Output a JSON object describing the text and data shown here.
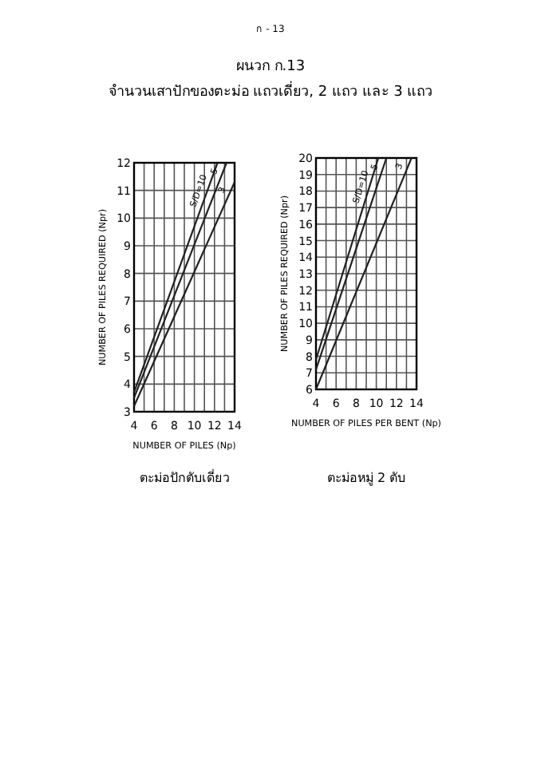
{
  "chart_data": [
    {
      "type": "line",
      "title": "ผนวก ก.13",
      "subtitle": "จำนวนเสาปักของตะม่อ แถวเดี่ยว, 2 แถว และ 3 แถว",
      "annotations": [
        "ก - 13",
        "ตะม่อปักตับเดี่ยว"
      ],
      "xlabel": "NUMBER OF PILES (Np)",
      "ylabel": "NUMBER OF PILES REQUIRED (Npr)",
      "xlim": [
        4,
        14
      ],
      "ylim": [
        3,
        12
      ],
      "xticks": [
        4,
        {
          "value": 5,
          "label": null
        },
        6,
        {
          "value": 7,
          "label": null
        },
        8,
        {
          "value": 9,
          "label": null
        },
        10,
        {
          "value": 11,
          "label": null
        },
        12,
        {
          "value": 13,
          "label": null
        },
        14
      ],
      "yticks": [
        3,
        4,
        5,
        6,
        7,
        8,
        9,
        10,
        11,
        12
      ],
      "grid": true,
      "line_style": "solid",
      "series": [
        {
          "name": "S/D=10",
          "color": "#222222",
          "x": [
            4,
            12.3
          ],
          "values": [
            3.7,
            12
          ]
        },
        {
          "name": "5",
          "color": "#222222",
          "x": [
            4,
            13.2
          ],
          "values": [
            3.5,
            12
          ]
        },
        {
          "name": "3",
          "color": "#222222",
          "x": [
            4,
            14
          ],
          "values": [
            3.2,
            11.3
          ]
        }
      ]
    },
    {
      "type": "line",
      "annotations": [
        "ตะม่อหมู่ 2 ตับ"
      ],
      "xlabel": "NUMBER OF PILES PER BENT (Np)",
      "ylabel": "NUMBER OF PILES REQUIRED (Npr)",
      "xlim": [
        4,
        14
      ],
      "ylim": [
        6,
        20
      ],
      "xticks": [
        4,
        {
          "value": 5,
          "label": null
        },
        6,
        {
          "value": 7,
          "label": null
        },
        8,
        {
          "value": 9,
          "label": null
        },
        10,
        {
          "value": 11,
          "label": null
        },
        12,
        {
          "value": 13,
          "label": null
        },
        14
      ],
      "yticks": [
        6,
        7,
        8,
        9,
        10,
        11,
        12,
        13,
        14,
        15,
        16,
        17,
        18,
        19,
        20
      ],
      "grid": true,
      "line_style": "solid",
      "series": [
        {
          "name": "S/D=10",
          "color": "#222222",
          "x": [
            4,
            10.2
          ],
          "values": [
            7.8,
            20
          ]
        },
        {
          "name": "5",
          "color": "#222222",
          "x": [
            4,
            11
          ],
          "values": [
            7.2,
            20
          ]
        },
        {
          "name": "3",
          "color": "#222222",
          "x": [
            4,
            13.5
          ],
          "values": [
            6,
            20
          ]
        }
      ]
    }
  ]
}
